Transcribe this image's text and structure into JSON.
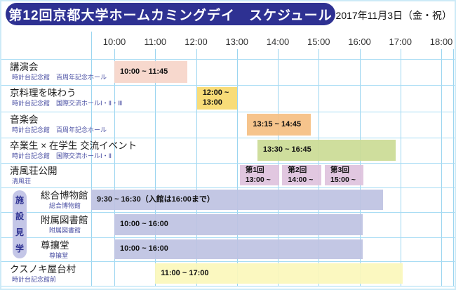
{
  "header": {
    "title": "第12回京都大学ホームカミングデイ　スケジュール",
    "date": "2017年11月3日（金・祝）"
  },
  "colors": {
    "title_bg": "#2e3192",
    "title_text": "#ffffff",
    "grid_line": "#9bd5f0",
    "venue_text": "#4a4fa3",
    "group_strip_bg": "#c4c6e7",
    "group_strip_text": "#2e3192"
  },
  "chart_data": {
    "type": "bar",
    "variant": "gantt-schedule",
    "title": "第12回京都大学ホームカミングデイ　スケジュール",
    "date": "2017年11月3日（金・祝）",
    "grid": true,
    "x_axis": {
      "tick_labels": [
        "10:00",
        "11:00",
        "12:00",
        "13:00",
        "14:00",
        "15:00",
        "16:00",
        "17:00",
        "18:00"
      ],
      "tick_hours": [
        10,
        11,
        12,
        13,
        14,
        15,
        16,
        17,
        18
      ],
      "range_hours": [
        9.433,
        18.33
      ]
    },
    "group": {
      "label": "施設見学",
      "first_row": 5,
      "last_row": 7
    },
    "rows": [
      {
        "label": "講演会",
        "venue": "時計台記念館　百周年記念ホール",
        "bars": [
          {
            "start": 10.0,
            "end": 11.78,
            "text": "10:00 ~ 11:45",
            "color": "#f6d5c9"
          }
        ]
      },
      {
        "label": "京料理を味わう",
        "venue": "時計台記念館　国際交流ホールⅠ・Ⅱ・Ⅲ",
        "bars": [
          {
            "start": 12.02,
            "end": 13.0,
            "text": "12:00 ~ 13:00",
            "color": "#f8d96e"
          }
        ]
      },
      {
        "label": "音楽会",
        "venue": "時計台記念館　百周年記念ホール",
        "bars": [
          {
            "start": 13.25,
            "end": 14.8,
            "text": "13:15 ~ 14:45",
            "color": "#f5c083"
          }
        ]
      },
      {
        "label": "卒業生 × 在学生 交流イベント",
        "venue": "時計台記念館　国際交流ホールⅠ・Ⅱ",
        "bars": [
          {
            "start": 13.5,
            "end": 16.88,
            "text": "13:30 ~ 16:45",
            "color": "#cbdc96"
          }
        ]
      },
      {
        "label": "清風荘公開",
        "venue": "清風荘",
        "bars": [
          {
            "start": 13.07,
            "end": 14.04,
            "text": "第1回\n13:00 ~",
            "color": "#dfc3de"
          },
          {
            "start": 14.11,
            "end": 15.06,
            "text": "第2回\n14:00 ~",
            "color": "#dfc3de"
          },
          {
            "start": 15.15,
            "end": 16.09,
            "text": "第3回\n15:00 ~",
            "color": "#dfc3de"
          }
        ]
      },
      {
        "label": "総合博物館",
        "venue": "総合博物館",
        "group": true,
        "bars": [
          {
            "start": 9.433,
            "end": 16.57,
            "text": "9:30 ~ 16:30（入館は16:00まで）",
            "color": "#bec3e2"
          }
        ]
      },
      {
        "label": "附属図書館",
        "venue": "附属図書館",
        "group": true,
        "bars": [
          {
            "start": 10.0,
            "end": 16.08,
            "text": "10:00 ~ 16:00",
            "color": "#bec3e2"
          }
        ]
      },
      {
        "label": "尊攘堂",
        "venue": "尊攘堂",
        "group": true,
        "bars": [
          {
            "start": 10.0,
            "end": 16.08,
            "text": "10:00 ~ 16:00",
            "color": "#bec3e2"
          }
        ]
      },
      {
        "label": "クスノキ屋台村",
        "venue": "時計台記念館前",
        "bars": [
          {
            "start": 11.0,
            "end": 17.06,
            "text": "11:00 ~ 17:00",
            "color": "#fbf8bb"
          }
        ]
      }
    ]
  }
}
